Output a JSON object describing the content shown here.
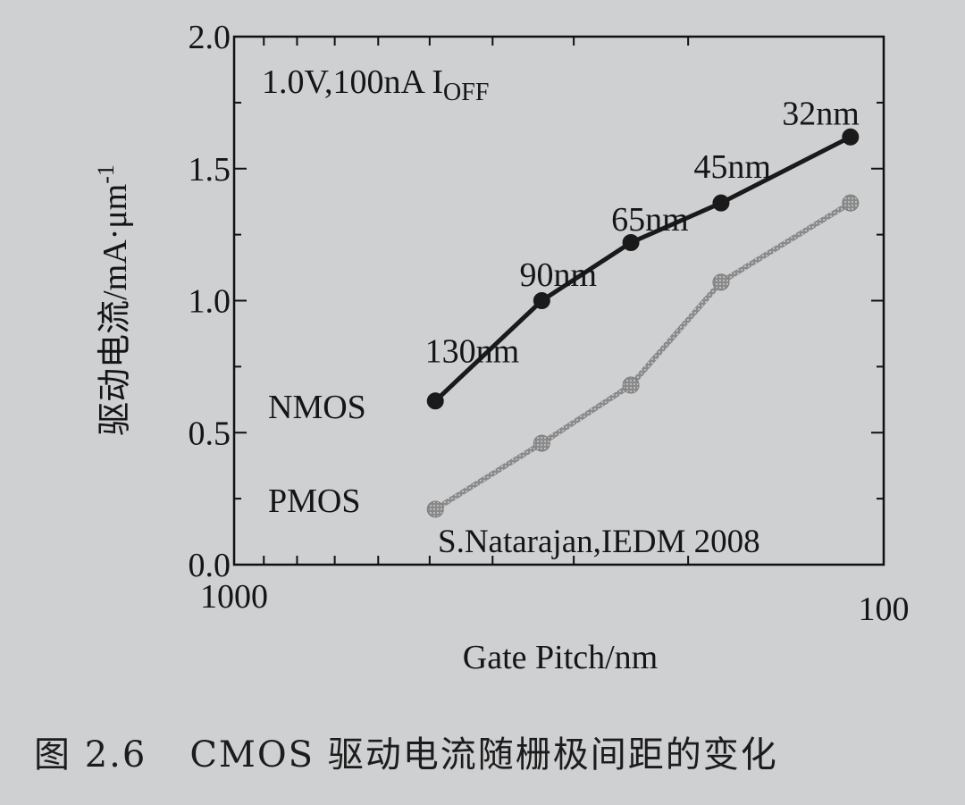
{
  "chart_data": {
    "type": "line",
    "x_scale": "log",
    "xlim": [
      1000,
      100
    ],
    "ylim": [
      0.0,
      2.0
    ],
    "xlabel": "Gate Pitch/nm",
    "ylabel": "驱动电流/mA·μm",
    "ylabel_sup": "-1",
    "x_ticks": [
      {
        "value": 1000,
        "label": "1000"
      },
      {
        "value": 100,
        "label": "100"
      }
    ],
    "y_ticks": [
      {
        "value": 0.0,
        "label": "0.0"
      },
      {
        "value": 0.5,
        "label": "0.5"
      },
      {
        "value": 1.0,
        "label": "1.0"
      },
      {
        "value": 1.5,
        "label": "1.5"
      },
      {
        "value": 2.0,
        "label": "2.0"
      }
    ],
    "annotations": {
      "condition_main": "1.0V,100nA I",
      "condition_sub": "OFF",
      "source": "S.Natarajan,IEDM 2008"
    },
    "node_labels": [
      {
        "text": "130nm",
        "x": 430,
        "y": 0.81
      },
      {
        "text": "90nm",
        "x": 317,
        "y": 1.1
      },
      {
        "text": "65nm",
        "x": 229,
        "y": 1.31
      },
      {
        "text": "45nm",
        "x": 171,
        "y": 1.51
      },
      {
        "text": "32nm",
        "x": 125,
        "y": 1.71
      }
    ],
    "series": [
      {
        "name": "NMOS",
        "color": "#1a1a1a",
        "x": [
          490,
          336,
          245,
          178,
          112.5
        ],
        "y": [
          0.62,
          1.0,
          1.22,
          1.37,
          1.62
        ]
      },
      {
        "name": "PMOS",
        "color": "#8c8c8c",
        "x": [
          490,
          336,
          245,
          178,
          112.5
        ],
        "y": [
          0.21,
          0.46,
          0.68,
          1.07,
          1.37
        ]
      }
    ]
  },
  "caption": {
    "label": "图 2.6",
    "text": "CMOS 驱动电流随栅极间距的变化"
  }
}
